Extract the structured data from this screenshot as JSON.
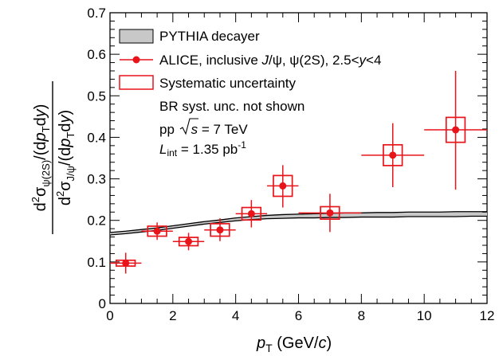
{
  "chart_data": {
    "type": "scatter",
    "xlabel": "p_T (GeV/c)",
    "xlabel_parts": {
      "p": "p",
      "sub": "T",
      "rest": " (GeV/",
      "c": "c",
      "close": ")"
    },
    "ylabel": "d²σ_ψ(2S)/(dp_T dy) / d²σ_J/ψ/(dp_T dy)",
    "xlim": [
      0,
      12
    ],
    "ylim": [
      0,
      0.7
    ],
    "xticks": [
      "0",
      "2",
      "4",
      "6",
      "8",
      "10",
      "12"
    ],
    "yticks": [
      "0",
      "0.1",
      "0.2",
      "0.3",
      "0.4",
      "0.5",
      "0.6",
      "0.7"
    ],
    "grid": false,
    "legend_position": "top-left",
    "series": [
      {
        "name": "ALICE, inclusive J/ψ, ψ(2S), 2.5<y<4",
        "color": "#e8141a",
        "points": [
          {
            "x": 0.5,
            "y": 0.097,
            "xerr": 0.5,
            "ylo": 0.072,
            "yhi": 0.122,
            "sys": 0.007
          },
          {
            "x": 1.5,
            "y": 0.174,
            "xerr": 0.5,
            "ylo": 0.153,
            "yhi": 0.195,
            "sys": 0.012
          },
          {
            "x": 2.5,
            "y": 0.149,
            "xerr": 0.5,
            "ylo": 0.128,
            "yhi": 0.17,
            "sys": 0.01
          },
          {
            "x": 3.5,
            "y": 0.177,
            "xerr": 0.5,
            "ylo": 0.15,
            "yhi": 0.205,
            "sys": 0.015
          },
          {
            "x": 4.5,
            "y": 0.216,
            "xerr": 0.5,
            "ylo": 0.183,
            "yhi": 0.249,
            "sys": 0.015
          },
          {
            "x": 5.5,
            "y": 0.283,
            "xerr": 0.5,
            "ylo": 0.231,
            "yhi": 0.333,
            "sys": 0.025
          },
          {
            "x": 7.0,
            "y": 0.218,
            "xerr": 1.0,
            "ylo": 0.172,
            "yhi": 0.264,
            "sys": 0.015
          },
          {
            "x": 9.0,
            "y": 0.357,
            "xerr": 1.0,
            "ylo": 0.28,
            "yhi": 0.434,
            "sys": 0.025
          },
          {
            "x": 11.0,
            "y": 0.418,
            "xerr": 1.0,
            "ylo": 0.274,
            "yhi": 0.56,
            "sys": 0.03
          }
        ]
      },
      {
        "name": "PYTHIA decayer",
        "color": "#c8c8c8",
        "x": [
          0,
          0.5,
          1,
          1.5,
          2,
          2.5,
          3,
          3.5,
          4,
          4.5,
          5,
          5.5,
          6,
          6.5,
          7,
          7.5,
          8,
          8.5,
          9,
          9.5,
          10,
          10.5,
          11,
          11.5,
          12
        ],
        "low": [
          0.165,
          0.168,
          0.172,
          0.176,
          0.181,
          0.186,
          0.191,
          0.195,
          0.199,
          0.202,
          0.204,
          0.205,
          0.206,
          0.206,
          0.207,
          0.207,
          0.208,
          0.208,
          0.208,
          0.209,
          0.209,
          0.209,
          0.209,
          0.21,
          0.21
        ],
        "high": [
          0.171,
          0.174,
          0.178,
          0.182,
          0.187,
          0.192,
          0.197,
          0.201,
          0.206,
          0.209,
          0.212,
          0.214,
          0.215,
          0.216,
          0.217,
          0.218,
          0.218,
          0.219,
          0.219,
          0.22,
          0.22,
          0.22,
          0.221,
          0.221,
          0.221
        ]
      }
    ],
    "legend": {
      "pythia": "PYTHIA decayer",
      "alice": "ALICE, inclusive J/ψ, ψ(2S), 2.5<y<4",
      "syst": "Systematic uncertainty",
      "br_note": "BR syst. unc. not shown",
      "energy": "pp √s = 7 TeV",
      "lumi": "L_int = 1.35 pb⁻¹"
    },
    "legend_parts": {
      "alice_pre": "ALICE, inclusive ",
      "alice_jpsi": "J",
      "alice_psi": "/ψ, ψ(2S), 2.5<",
      "alice_y": "y",
      "alice_post": "<4",
      "energy_pre": "pp ",
      "energy_s": "s",
      "energy_post": " = 7 TeV",
      "lumi_L": "L",
      "lumi_sub": "int",
      "lumi_post": " = 1.35 pb",
      "lumi_sup": "-1"
    }
  }
}
